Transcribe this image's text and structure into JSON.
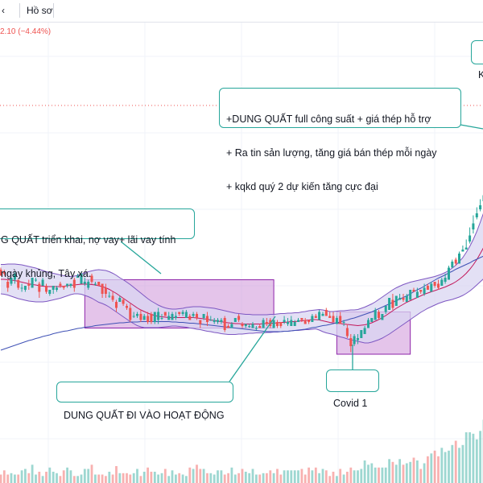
{
  "toolbar": {
    "item_left": "‹",
    "item_profile": "Hồ sơ",
    "price_change": "2.10 (−4.44%)"
  },
  "annotations": {
    "top_right": [
      "+DUNG QUẤT full công suất + giá thép hỗ trợ",
      "+ Ra tin sản lượng, tăng giá bán thép mỗi ngày",
      "+ kqkd quý 2 dự kiến tăng cực đại"
    ],
    "left": [
      "G QUẤT triển khai, nợ vay+ lãi vay tính",
      "ngày khủng, Tây xá."
    ],
    "bottom": "DUNG QUẤT ĐI VÀO HOẠT ĐỘNG",
    "covid": "Covid 1",
    "corner": "K"
  },
  "colors": {
    "up": "#26a69a",
    "down": "#ef5350",
    "band_fill": "#d9d6f2",
    "band_line": "#7e57c2",
    "mid_line": "#c2185b",
    "long_ma": "#3f51b5",
    "box_fill": "#ce93d8",
    "box_border": "#8e24aa",
    "callout_border": "#26a69a",
    "dotted_line": "#ef5350"
  },
  "chart_data": {
    "type": "candlestick",
    "title": "",
    "xlabel": "",
    "ylabel": "",
    "ylim": [
      0,
      100
    ],
    "grid": true,
    "x": [
      1,
      2,
      3,
      4,
      5,
      6,
      7,
      8,
      9,
      10,
      11,
      12,
      13,
      14,
      15,
      16,
      17,
      18,
      19,
      20,
      21,
      22,
      23,
      24,
      25,
      26,
      27,
      28,
      29,
      30,
      31,
      32,
      33,
      34,
      35,
      36,
      37,
      38,
      39,
      40,
      41,
      42,
      43,
      44,
      45,
      46,
      47,
      48,
      49,
      50,
      51,
      52,
      53,
      54,
      55,
      56,
      57,
      58,
      59,
      60,
      61,
      62,
      63,
      64,
      65,
      66,
      67,
      68,
      69,
      70,
      71,
      72,
      73,
      74,
      75,
      76,
      77,
      78,
      79,
      80,
      81,
      82,
      83,
      84,
      85,
      86,
      87,
      88,
      89,
      90,
      91,
      92,
      93,
      94,
      95,
      96,
      97,
      98,
      99,
      100,
      101,
      102,
      103,
      104,
      105,
      106,
      107,
      108,
      109,
      110,
      111,
      112,
      113,
      114,
      115,
      116,
      117,
      118,
      119,
      120,
      121,
      122,
      123,
      124,
      125,
      126,
      127,
      128,
      129,
      130,
      131,
      132,
      133,
      134,
      135,
      136,
      137,
      138,
      139,
      140
    ],
    "close": [
      43.5,
      44.0,
      40.5,
      43.0,
      44.0,
      40.5,
      40.5,
      41.0,
      41.0,
      43.0,
      42.5,
      39.5,
      42.5,
      39.5,
      40.0,
      41.0,
      40.5,
      41.0,
      40.5,
      41.5,
      41.5,
      40.5,
      43.5,
      44.0,
      42.0,
      42.0,
      42.0,
      41.5,
      41.0,
      39.0,
      39.0,
      38.5,
      37.5,
      35.5,
      38.0,
      36.5,
      35.5,
      32.5,
      33.5,
      34.0,
      32.5,
      33.5,
      32.0,
      32.0,
      34.5,
      34.5,
      33.0,
      33.5,
      33.5,
      34.0,
      33.5,
      34.0,
      34.5,
      34.5,
      32.5,
      34.0,
      33.0,
      31.5,
      34.0,
      32.0,
      32.5,
      32.5,
      32.5,
      32.5,
      30.0,
      30.5,
      31.5,
      33.0,
      32.5,
      31.0,
      31.5,
      31.0,
      31.5,
      30.5,
      30.5,
      32.5,
      31.5,
      31.0,
      32.5,
      31.0,
      31.0,
      32.5,
      32.0,
      32.5,
      32.0,
      32.5,
      32.5,
      31.5,
      32.0,
      33.5,
      33.0,
      34.5,
      34.0,
      33.5,
      33.0,
      32.0,
      33.0,
      31.5,
      32.0,
      28.5,
      26.0,
      28.5,
      28.0,
      30.0,
      30.5,
      32.5,
      33.0,
      35.0,
      33.0,
      34.0,
      36.0,
      38.0,
      35.5,
      38.5,
      38.0,
      37.5,
      38.5,
      40.0,
      39.5,
      39.5,
      39.5,
      40.5,
      40.0,
      41.5,
      41.0,
      40.5,
      42.5,
      43.0,
      45.5,
      47.0,
      46.5,
      49.0,
      50.0,
      50.5,
      53.5,
      56.5,
      59.0,
      61.0,
      63.5,
      68.0
    ],
    "open": [
      45.0,
      44.5,
      42.0,
      41.5,
      42.5,
      42.5,
      40.5,
      40.0,
      41.5,
      40.5,
      42.5,
      41.5,
      41.0,
      41.0,
      39.0,
      40.0,
      40.0,
      41.5,
      41.0,
      41.0,
      41.0,
      42.5,
      43.0,
      41.5,
      41.5,
      40.5,
      43.5,
      41.5,
      42.0,
      41.5,
      40.5,
      38.5,
      38.5,
      37.0,
      37.0,
      37.5,
      36.0,
      35.5,
      33.5,
      33.5,
      34.0,
      32.5,
      33.5,
      34.0,
      32.0,
      32.5,
      33.0,
      34.5,
      32.5,
      32.5,
      33.0,
      34.5,
      34.0,
      33.0,
      33.5,
      33.5,
      34.0,
      32.5,
      33.0,
      33.5,
      32.5,
      32.0,
      32.0,
      32.0,
      33.0,
      31.0,
      30.5,
      32.0,
      33.5,
      31.5,
      31.0,
      31.0,
      30.5,
      30.5,
      31.0,
      30.5,
      32.0,
      32.5,
      30.5,
      32.0,
      32.0,
      32.0,
      31.5,
      31.0,
      31.0,
      32.0,
      33.0,
      32.5,
      32.5,
      32.0,
      33.5,
      32.5,
      33.5,
      35.0,
      33.5,
      33.5,
      31.5,
      33.5,
      32.0,
      30.5,
      28.0,
      26.5,
      27.5,
      28.0,
      29.0,
      30.5,
      32.0,
      32.5,
      34.5,
      32.5,
      34.5,
      35.0,
      37.5,
      36.0,
      37.5,
      38.0,
      37.0,
      37.5,
      40.0,
      38.0,
      40.0,
      39.0,
      41.0,
      39.5,
      42.0,
      41.5,
      41.0,
      42.0,
      42.5,
      45.5,
      47.5,
      46.5,
      49.5,
      50.0,
      52.0,
      55.0,
      58.0,
      60.0,
      62.0,
      64.5
    ],
    "high": [
      45.5,
      45.0,
      42.5,
      43.0,
      44.5,
      42.5,
      41.5,
      41.0,
      42.5,
      43.0,
      43.0,
      42.0,
      43.0,
      41.5,
      40.0,
      41.0,
      41.0,
      42.0,
      41.0,
      41.5,
      41.5,
      43.0,
      44.0,
      44.5,
      43.0,
      42.5,
      44.0,
      42.0,
      42.0,
      41.5,
      41.5,
      39.5,
      39.5,
      37.5,
      38.5,
      38.0,
      36.5,
      36.5,
      34.5,
      34.5,
      35.0,
      34.0,
      34.5,
      34.5,
      34.5,
      35.5,
      34.0,
      34.5,
      34.5,
      34.5,
      34.5,
      34.5,
      35.0,
      35.0,
      34.0,
      34.5,
      34.5,
      32.5,
      34.0,
      34.5,
      33.5,
      33.0,
      33.0,
      33.0,
      33.5,
      31.5,
      32.0,
      33.0,
      34.0,
      32.0,
      31.5,
      31.5,
      32.0,
      31.0,
      31.5,
      33.0,
      33.0,
      33.0,
      32.5,
      32.5,
      32.0,
      33.5,
      33.0,
      33.5,
      32.5,
      33.0,
      33.0,
      33.0,
      32.5,
      34.0,
      34.0,
      35.0,
      34.5,
      35.5,
      34.5,
      34.5,
      33.5,
      34.5,
      32.5,
      31.5,
      29.0,
      29.0,
      29.0,
      30.0,
      31.0,
      33.0,
      33.0,
      35.5,
      35.0,
      34.0,
      35.0,
      38.0,
      39.0,
      38.5,
      39.0,
      39.0,
      39.0,
      40.0,
      40.5,
      40.5,
      40.0,
      41.5,
      41.5,
      42.0,
      42.0,
      42.5,
      43.0,
      44.0,
      46.0,
      47.5,
      48.0,
      49.5,
      51.0,
      52.5,
      55.5,
      58.5,
      60.5,
      62.5,
      66.0,
      70.0
    ],
    "low": [
      43.5,
      43.5,
      39.5,
      41.0,
      41.5,
      40.0,
      39.5,
      39.5,
      40.0,
      40.5,
      42.0,
      38.0,
      41.0,
      39.0,
      38.5,
      39.0,
      39.5,
      40.5,
      40.0,
      40.5,
      40.5,
      39.5,
      43.0,
      41.5,
      41.0,
      40.0,
      41.5,
      41.0,
      41.0,
      38.0,
      38.0,
      38.0,
      37.0,
      34.5,
      37.0,
      36.0,
      35.0,
      32.0,
      33.0,
      33.0,
      32.0,
      32.5,
      31.5,
      31.5,
      31.5,
      31.5,
      32.5,
      33.5,
      32.5,
      32.5,
      32.5,
      33.5,
      33.5,
      33.0,
      32.5,
      33.0,
      32.5,
      30.5,
      32.5,
      31.0,
      32.5,
      31.5,
      31.5,
      31.5,
      29.5,
      30.5,
      30.5,
      32.0,
      32.0,
      30.5,
      30.5,
      30.5,
      30.5,
      30.0,
      30.5,
      30.5,
      31.0,
      30.5,
      30.5,
      30.5,
      30.5,
      31.5,
      31.0,
      31.0,
      31.0,
      32.0,
      32.0,
      31.5,
      31.5,
      32.0,
      33.0,
      32.5,
      33.5,
      33.5,
      33.0,
      32.0,
      31.5,
      31.5,
      31.0,
      28.0,
      24.5,
      26.0,
      26.5,
      28.0,
      29.0,
      30.5,
      32.0,
      32.5,
      32.5,
      32.5,
      34.0,
      35.0,
      35.0,
      36.0,
      37.5,
      37.0,
      37.0,
      37.5,
      39.5,
      38.0,
      39.0,
      38.5,
      40.0,
      39.5,
      40.5,
      40.0,
      41.0,
      41.5,
      42.5,
      45.5,
      46.0,
      46.5,
      49.5,
      50.0,
      51.5,
      54.0,
      57.5,
      59.5,
      61.5,
      64.0
    ],
    "volume": [
      6,
      9,
      6,
      7,
      6,
      6,
      9,
      10,
      7,
      13,
      6,
      8,
      5,
      8,
      11,
      8,
      7,
      5,
      9,
      11,
      9,
      5,
      5,
      6,
      10,
      10,
      13,
      6,
      6,
      6,
      5,
      8,
      6,
      12,
      7,
      7,
      7,
      6,
      7,
      10,
      5,
      8,
      11,
      8,
      8,
      6,
      7,
      10,
      5,
      9,
      6,
      7,
      6,
      5,
      11,
      10,
      13,
      10,
      10,
      7,
      7,
      6,
      9,
      9,
      6,
      7,
      11,
      6,
      7,
      10,
      8,
      7,
      10,
      6,
      6,
      7,
      7,
      9,
      7,
      10,
      6,
      9,
      9,
      9,
      9,
      9,
      10,
      6,
      11,
      9,
      11,
      7,
      10,
      9,
      5,
      8,
      5,
      10,
      6,
      8,
      11,
      9,
      9,
      10,
      16,
      13,
      14,
      11,
      11,
      11,
      11,
      17,
      15,
      13,
      17,
      13,
      14,
      15,
      18,
      16,
      10,
      14,
      19,
      21,
      23,
      19,
      25,
      22,
      23,
      27,
      30,
      25,
      27,
      36,
      36,
      35,
      31,
      37,
      45,
      50
    ],
    "bollinger_upper": [
      46.3,
      46.3,
      46.4,
      46.4,
      46.4,
      46.3,
      46.2,
      46.0,
      45.8,
      45.6,
      45.4,
      45.1,
      44.8,
      44.5,
      44.3,
      44.1,
      43.9,
      43.7,
      43.5,
      43.4,
      43.3,
      43.4,
      43.6,
      43.9,
      44.2,
      44.5,
      44.7,
      44.9,
      45.0,
      44.9,
      44.8,
      44.5,
      44.1,
      43.6,
      43.0,
      42.5,
      41.9,
      41.3,
      40.6,
      39.9,
      39.2,
      38.5,
      37.8,
      37.2,
      36.7,
      36.2,
      35.8,
      35.5,
      35.3,
      35.2,
      35.2,
      35.3,
      35.4,
      35.6,
      35.7,
      35.8,
      35.8,
      35.8,
      35.7,
      35.6,
      35.5,
      35.4,
      35.2,
      35.0,
      34.8,
      34.6,
      34.4,
      34.2,
      34.1,
      34.0,
      33.9,
      33.9,
      33.8,
      33.8,
      33.8,
      33.8,
      33.8,
      33.9,
      33.9,
      34.0,
      34.1,
      34.1,
      34.2,
      34.2,
      34.3,
      34.3,
      34.5,
      34.6,
      34.8,
      34.9,
      35.0,
      35.1,
      35.0,
      34.8,
      34.6,
      34.6,
      34.7,
      34.8,
      34.8,
      34.9,
      35.0,
      35.0,
      35.1,
      35.4,
      35.7,
      36.1,
      36.5,
      37.0,
      37.6,
      38.2,
      38.8,
      39.4,
      40.0,
      40.5,
      40.9,
      41.3,
      41.6,
      41.9,
      42.1,
      42.3,
      42.5,
      42.7,
      42.9,
      43.1,
      43.3,
      43.6,
      43.9,
      44.3,
      44.8,
      45.4,
      46.1,
      47.0,
      48.0,
      49.3,
      50.8,
      52.5,
      54.5,
      56.8,
      59.3,
      62.0
    ],
    "bollinger_mid": [
      42.6,
      42.6,
      42.5,
      42.4,
      42.3,
      42.1,
      41.9,
      41.7,
      41.5,
      41.3,
      41.2,
      41.0,
      40.9,
      40.8,
      40.8,
      40.8,
      40.8,
      40.8,
      40.9,
      41.0,
      41.1,
      41.2,
      41.3,
      41.4,
      41.4,
      41.4,
      41.3,
      41.2,
      41.0,
      40.8,
      40.5,
      40.1,
      39.6,
      39.1,
      38.5,
      37.9,
      37.3,
      36.7,
      36.1,
      35.5,
      35.0,
      34.6,
      34.2,
      33.9,
      33.6,
      33.4,
      33.3,
      33.2,
      33.1,
      33.1,
      33.1,
      33.1,
      33.1,
      33.1,
      33.1,
      33.1,
      33.0,
      32.9,
      32.8,
      32.7,
      32.5,
      32.4,
      32.2,
      32.1,
      31.9,
      31.8,
      31.7,
      31.6,
      31.6,
      31.5,
      31.5,
      31.5,
      31.5,
      31.5,
      31.5,
      31.6,
      31.6,
      31.7,
      31.7,
      31.8,
      31.9,
      31.9,
      32.0,
      32.1,
      32.1,
      32.2,
      32.3,
      32.4,
      32.5,
      32.6,
      32.6,
      32.5,
      32.3,
      32.1,
      31.9,
      31.8,
      31.7,
      31.6,
      31.5,
      31.4,
      31.3,
      31.2,
      31.1,
      31.2,
      31.3,
      31.5,
      31.8,
      32.2,
      32.6,
      33.1,
      33.6,
      34.2,
      34.8,
      35.4,
      35.9,
      36.4,
      36.9,
      37.3,
      37.7,
      38.1,
      38.5,
      38.9,
      39.2,
      39.5,
      39.8,
      40.1,
      40.4,
      40.7,
      41.1,
      41.5,
      42.0,
      42.6,
      43.3,
      44.1,
      45.1,
      46.2,
      47.5,
      49.0,
      50.6,
      52.4
    ],
    "bollinger_lower": [
      39.0,
      38.9,
      38.7,
      38.4,
      38.1,
      37.8,
      37.6,
      37.4,
      37.2,
      37.1,
      37.0,
      37.0,
      37.0,
      37.1,
      37.3,
      37.5,
      37.7,
      37.9,
      38.2,
      38.5,
      38.8,
      39.0,
      39.0,
      38.9,
      38.6,
      38.3,
      37.9,
      37.4,
      36.9,
      36.6,
      36.2,
      35.7,
      35.1,
      34.5,
      33.9,
      33.3,
      32.7,
      32.1,
      31.6,
      31.1,
      30.8,
      30.6,
      30.6,
      30.6,
      30.6,
      30.6,
      30.7,
      30.8,
      30.9,
      31.0,
      31.0,
      30.9,
      30.8,
      30.7,
      30.5,
      30.4,
      30.2,
      30.1,
      29.9,
      29.7,
      29.6,
      29.4,
      29.3,
      29.1,
      29.0,
      28.9,
      28.9,
      28.9,
      29.0,
      29.0,
      29.1,
      29.2,
      29.2,
      29.3,
      29.3,
      29.3,
      29.4,
      29.4,
      29.5,
      29.5,
      29.6,
      29.7,
      29.7,
      29.8,
      29.9,
      29.9,
      30.0,
      30.1,
      30.1,
      30.2,
      30.3,
      30.0,
      29.6,
      29.3,
      29.1,
      28.9,
      28.6,
      28.3,
      28.1,
      27.8,
      27.6,
      27.4,
      27.2,
      27.0,
      26.8,
      26.8,
      27.0,
      27.3,
      27.6,
      28.0,
      28.5,
      29.0,
      29.6,
      30.2,
      30.8,
      31.4,
      32.0,
      32.6,
      33.2,
      33.8,
      34.4,
      34.9,
      35.4,
      35.8,
      36.2,
      36.6,
      36.9,
      37.2,
      37.4,
      37.6,
      37.9,
      38.2,
      38.6,
      39.1,
      39.7,
      40.4,
      41.2,
      42.0,
      42.8,
      43.6
    ],
    "long_ma": [
      25.0,
      25.3,
      25.6,
      25.9,
      26.2,
      26.5,
      26.8,
      27.1,
      27.4,
      27.6,
      27.9,
      28.1,
      28.4,
      28.6,
      28.8,
      29.1,
      29.3,
      29.5,
      29.7,
      29.8,
      30.0,
      30.2,
      30.4,
      30.5,
      30.7,
      30.8,
      30.9,
      31.1,
      31.2,
      31.3,
      31.4,
      31.5,
      31.6,
      31.7,
      31.8,
      31.8,
      31.9,
      32.0,
      32.0,
      32.0,
      32.1,
      32.1,
      32.1,
      32.1,
      32.1,
      32.1,
      32.1,
      32.1,
      32.1,
      32.0,
      32.0,
      31.9,
      31.9,
      31.8,
      31.7,
      31.7,
      31.6,
      31.5,
      31.4,
      31.3,
      31.2,
      31.1,
      31.0,
      30.9,
      30.8,
      30.7,
      30.6,
      30.5,
      30.4,
      30.3,
      30.2,
      30.1,
      30.0,
      29.9,
      29.8,
      29.7,
      29.6,
      29.6,
      29.6,
      29.6,
      29.6,
      29.7,
      29.7,
      29.8,
      29.9,
      30.0,
      30.1,
      30.2,
      30.4,
      30.6,
      30.7,
      30.9,
      31.1,
      31.2,
      31.4,
      31.6,
      31.8,
      32.0,
      32.3,
      32.5,
      32.8,
      33.0,
      33.3,
      33.6,
      33.9,
      34.2,
      34.5,
      34.9,
      35.3,
      35.7,
      36.1,
      36.5,
      36.9,
      37.3,
      37.7,
      38.1,
      38.5,
      39.0,
      39.5,
      40.0,
      40.4,
      40.9,
      41.4,
      41.9,
      42.4,
      42.9,
      43.3,
      43.7,
      44.2,
      44.6,
      45.1,
      45.5,
      45.9,
      46.3,
      46.7,
      47.2,
      47.6,
      48.0,
      48.4,
      48.9
    ],
    "highlight_ranges": [
      {
        "x": [
          25,
          79
        ],
        "y": [
          30.5,
          42.5
        ]
      },
      {
        "x": [
          97,
          118
        ],
        "y": [
          24.0,
          34.5
        ]
      }
    ]
  }
}
